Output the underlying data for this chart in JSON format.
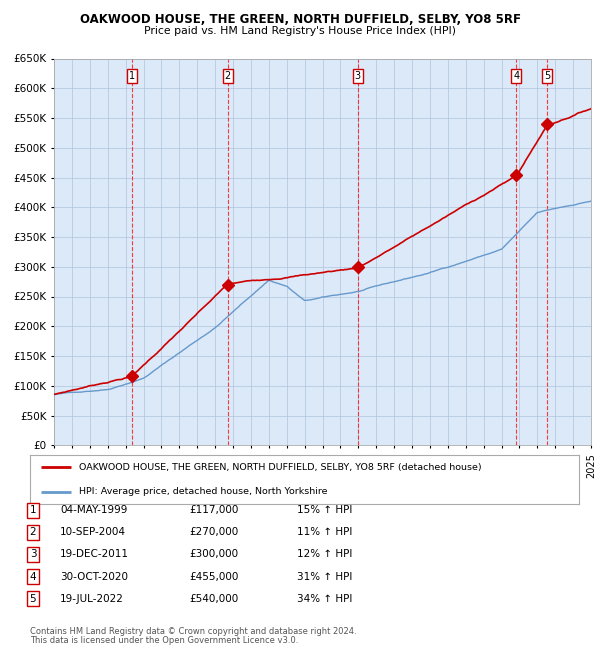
{
  "title": "OAKWOOD HOUSE, THE GREEN, NORTH DUFFIELD, SELBY, YO8 5RF",
  "subtitle": "Price paid vs. HM Land Registry's House Price Index (HPI)",
  "legend_line1": "OAKWOOD HOUSE, THE GREEN, NORTH DUFFIELD, SELBY, YO8 5RF (detached house)",
  "legend_line2": "HPI: Average price, detached house, North Yorkshire",
  "footer_line1": "Contains HM Land Registry data © Crown copyright and database right 2024.",
  "footer_line2": "This data is licensed under the Open Government Licence v3.0.",
  "ylim": [
    0,
    650000
  ],
  "yticks": [
    0,
    50000,
    100000,
    150000,
    200000,
    250000,
    300000,
    350000,
    400000,
    450000,
    500000,
    550000,
    600000,
    650000
  ],
  "x_start_year": 1995,
  "x_end_year": 2025,
  "background_color": "#dce9f8",
  "grid_color": "#b0c4de",
  "red_line_color": "#cc0000",
  "blue_line_color": "#6699cc",
  "sale_points": [
    {
      "year": 1999.35,
      "price": 117000,
      "label": "1"
    },
    {
      "year": 2004.7,
      "price": 270000,
      "label": "2"
    },
    {
      "year": 2011.96,
      "price": 300000,
      "label": "3"
    },
    {
      "year": 2020.83,
      "price": 455000,
      "label": "4"
    },
    {
      "year": 2022.54,
      "price": 540000,
      "label": "5"
    }
  ],
  "table_rows": [
    {
      "num": "1",
      "date": "04-MAY-1999",
      "price": "£117,000",
      "hpi": "15% ↑ HPI"
    },
    {
      "num": "2",
      "date": "10-SEP-2004",
      "price": "£270,000",
      "hpi": "11% ↑ HPI"
    },
    {
      "num": "3",
      "date": "19-DEC-2011",
      "price": "£300,000",
      "hpi": "12% ↑ HPI"
    },
    {
      "num": "4",
      "date": "30-OCT-2020",
      "price": "£455,000",
      "hpi": "31% ↑ HPI"
    },
    {
      "num": "5",
      "date": "19-JUL-2022",
      "price": "£540,000",
      "hpi": "34% ↑ HPI"
    }
  ]
}
